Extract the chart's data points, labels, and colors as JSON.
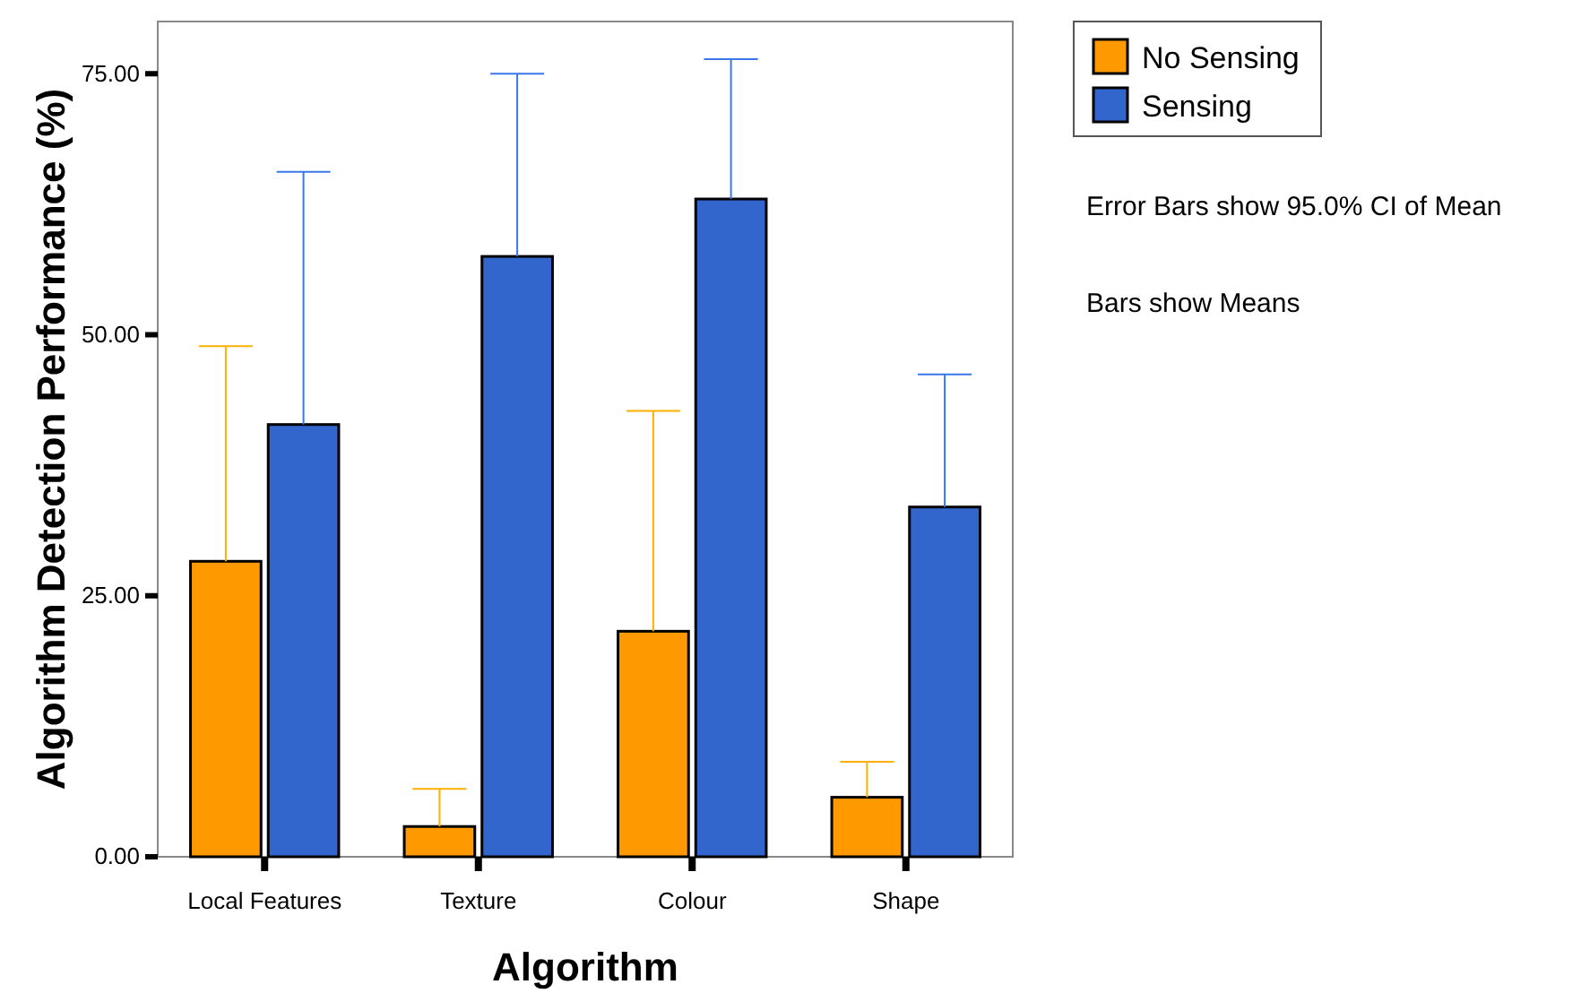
{
  "chart_data": {
    "type": "bar",
    "xlabel": "Algorithm",
    "ylabel": "Algorithm Detection Performance (%)",
    "categories": [
      "Local Features",
      "Texture",
      "Colour",
      "Shape"
    ],
    "series": [
      {
        "name": "No Sensing",
        "color": "#ff9900",
        "values": [
          28.3,
          2.9,
          21.6,
          5.7
        ],
        "errors": [
          [
            28.3,
            48.9
          ],
          [
            2.9,
            6.5
          ],
          [
            21.6,
            42.7
          ],
          [
            5.7,
            9.1
          ]
        ]
      },
      {
        "name": "Sensing",
        "color": "#3366cc",
        "values": [
          41.4,
          57.5,
          63.0,
          33.5
        ],
        "errors": [
          [
            41.4,
            65.6
          ],
          [
            57.5,
            75.0
          ],
          [
            63.0,
            76.4
          ],
          [
            33.5,
            46.2
          ]
        ]
      }
    ],
    "ylim": [
      0,
      80
    ],
    "yticks": [
      {
        "value": 0,
        "label": "0.00"
      },
      {
        "value": 25,
        "label": "25.00"
      },
      {
        "value": 50,
        "label": "50.00"
      },
      {
        "value": 75,
        "label": "75.00"
      }
    ],
    "grid": false,
    "legend": "top right",
    "annotations": [
      "Error Bars show 95.0% CI of Mean",
      "Bars show Means"
    ]
  }
}
